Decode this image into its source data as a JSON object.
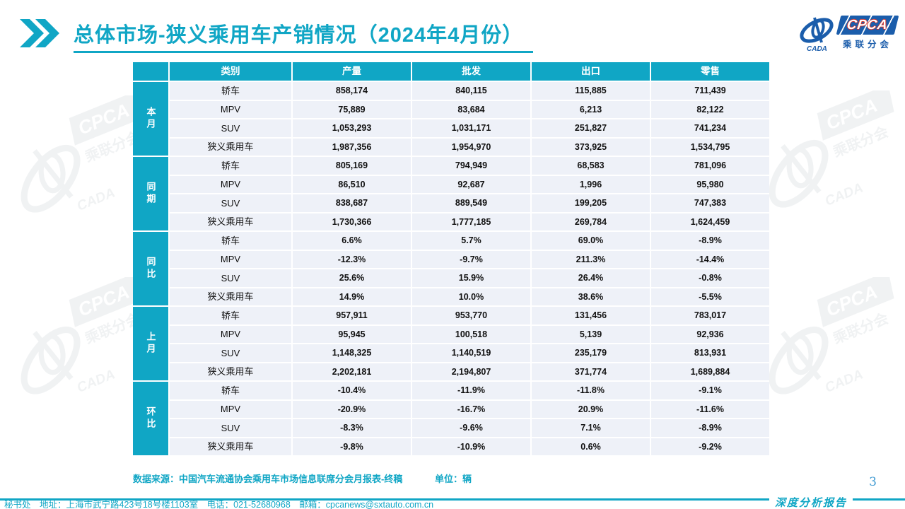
{
  "colors": {
    "accent": "#10a6c5",
    "row_bg": "#eef1f8",
    "logo_blue": "#1b5dab",
    "logo_red": "#d2342e",
    "page_number_blue": "#3f9ad2"
  },
  "header": {
    "title": "总体市场-狭义乘用车产销情况（2024年4月份）"
  },
  "logo": {
    "cpca": "CPCA",
    "cada": "CADA",
    "subtitle": "乘联分会"
  },
  "table": {
    "columns": [
      "类别",
      "产量",
      "批发",
      "出口",
      "零售"
    ],
    "groups": [
      {
        "label": "本月",
        "rows": [
          {
            "category": "轿车",
            "values": [
              "858,174",
              "840,115",
              "115,885",
              "711,439"
            ]
          },
          {
            "category": "MPV",
            "values": [
              "75,889",
              "83,684",
              "6,213",
              "82,122"
            ]
          },
          {
            "category": "SUV",
            "values": [
              "1,053,293",
              "1,031,171",
              "251,827",
              "741,234"
            ]
          },
          {
            "category": "狭义乘用车",
            "values": [
              "1,987,356",
              "1,954,970",
              "373,925",
              "1,534,795"
            ]
          }
        ]
      },
      {
        "label": "同期",
        "rows": [
          {
            "category": "轿车",
            "values": [
              "805,169",
              "794,949",
              "68,583",
              "781,096"
            ]
          },
          {
            "category": "MPV",
            "values": [
              "86,510",
              "92,687",
              "1,996",
              "95,980"
            ]
          },
          {
            "category": "SUV",
            "values": [
              "838,687",
              "889,549",
              "199,205",
              "747,383"
            ]
          },
          {
            "category": "狭义乘用车",
            "values": [
              "1,730,366",
              "1,777,185",
              "269,784",
              "1,624,459"
            ]
          }
        ]
      },
      {
        "label": "同比",
        "rows": [
          {
            "category": "轿车",
            "values": [
              "6.6%",
              "5.7%",
              "69.0%",
              "-8.9%"
            ]
          },
          {
            "category": "MPV",
            "values": [
              "-12.3%",
              "-9.7%",
              "211.3%",
              "-14.4%"
            ]
          },
          {
            "category": "SUV",
            "values": [
              "25.6%",
              "15.9%",
              "26.4%",
              "-0.8%"
            ]
          },
          {
            "category": "狭义乘用车",
            "values": [
              "14.9%",
              "10.0%",
              "38.6%",
              "-5.5%"
            ]
          }
        ]
      },
      {
        "label": "上月",
        "rows": [
          {
            "category": "轿车",
            "values": [
              "957,911",
              "953,770",
              "131,456",
              "783,017"
            ]
          },
          {
            "category": "MPV",
            "values": [
              "95,945",
              "100,518",
              "5,139",
              "92,936"
            ]
          },
          {
            "category": "SUV",
            "values": [
              "1,148,325",
              "1,140,519",
              "235,179",
              "813,931"
            ]
          },
          {
            "category": "狭义乘用车",
            "values": [
              "2,202,181",
              "2,194,807",
              "371,774",
              "1,689,884"
            ]
          }
        ]
      },
      {
        "label": "环比",
        "rows": [
          {
            "category": "轿车",
            "values": [
              "-10.4%",
              "-11.9%",
              "-11.8%",
              "-9.1%"
            ]
          },
          {
            "category": "MPV",
            "values": [
              "-20.9%",
              "-16.7%",
              "20.9%",
              "-11.6%"
            ]
          },
          {
            "category": "SUV",
            "values": [
              "-8.3%",
              "-9.6%",
              "7.1%",
              "-8.9%"
            ]
          },
          {
            "category": "狭义乘用车",
            "values": [
              "-9.8%",
              "-10.9%",
              "0.6%",
              "-9.2%"
            ]
          }
        ]
      }
    ]
  },
  "notes": {
    "source": "数据来源：中国汽车流通协会乘用车市场信息联席分会月报表-终稿",
    "unit": "单位：辆"
  },
  "footer": {
    "report_label": "深度分析报告",
    "page_number": "3",
    "contact": "秘书处　地址：上海市武宁路423号18号楼1103室　电话：021-52680968　邮箱：cpcanews@sxtauto.com.cn"
  }
}
